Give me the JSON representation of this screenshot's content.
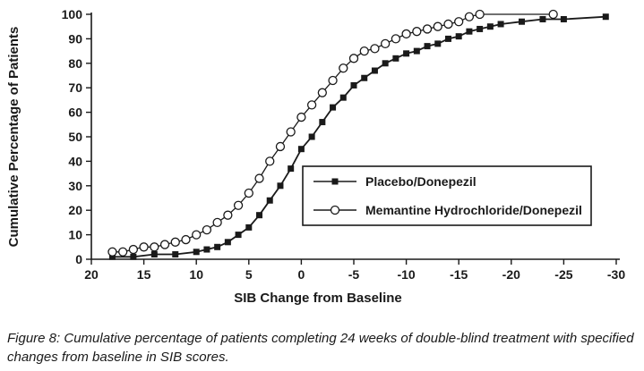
{
  "figure": {
    "caption": "Figure 8: Cumulative percentage of patients completing 24 weeks of double-blind treatment with specified changes from baseline in SIB scores."
  },
  "chart_data": {
    "type": "line",
    "title": "",
    "xlabel": "SIB Change from Baseline",
    "ylabel": "Cumulative Percentage of Patients",
    "x_axis_reversed": true,
    "xlim": [
      20,
      -30
    ],
    "ylim": [
      0,
      100
    ],
    "x_ticks": [
      20,
      15,
      10,
      5,
      0,
      -5,
      -10,
      -15,
      -20,
      -25,
      -30
    ],
    "y_ticks": [
      0,
      10,
      20,
      30,
      40,
      50,
      60,
      70,
      80,
      90,
      100
    ],
    "grid": false,
    "line_color": "#1a1a1a",
    "legend_position": "inside-right",
    "series": [
      {
        "name": "Placebo/Donepezil",
        "marker": "filled-square",
        "color": "#1a1a1a",
        "points": [
          [
            18,
            1
          ],
          [
            16,
            1
          ],
          [
            14,
            2
          ],
          [
            12,
            2
          ],
          [
            10,
            3
          ],
          [
            9,
            4
          ],
          [
            8,
            5
          ],
          [
            7,
            7
          ],
          [
            6,
            10
          ],
          [
            5,
            13
          ],
          [
            4,
            18
          ],
          [
            3,
            24
          ],
          [
            2,
            30
          ],
          [
            1,
            37
          ],
          [
            0,
            45
          ],
          [
            -1,
            50
          ],
          [
            -2,
            56
          ],
          [
            -3,
            62
          ],
          [
            -4,
            66
          ],
          [
            -5,
            71
          ],
          [
            -6,
            74
          ],
          [
            -7,
            77
          ],
          [
            -8,
            80
          ],
          [
            -9,
            82
          ],
          [
            -10,
            84
          ],
          [
            -11,
            85
          ],
          [
            -12,
            87
          ],
          [
            -13,
            88
          ],
          [
            -14,
            90
          ],
          [
            -15,
            91
          ],
          [
            -16,
            93
          ],
          [
            -17,
            94
          ],
          [
            -18,
            95
          ],
          [
            -19,
            96
          ],
          [
            -21,
            97
          ],
          [
            -23,
            98
          ],
          [
            -25,
            98
          ],
          [
            -29,
            99
          ]
        ]
      },
      {
        "name": "Memantine Hydrochloride/Donepezil",
        "marker": "open-circle",
        "color": "#1a1a1a",
        "points": [
          [
            18,
            3
          ],
          [
            17,
            3
          ],
          [
            16,
            4
          ],
          [
            15,
            5
          ],
          [
            14,
            5
          ],
          [
            13,
            6
          ],
          [
            12,
            7
          ],
          [
            11,
            8
          ],
          [
            10,
            10
          ],
          [
            9,
            12
          ],
          [
            8,
            15
          ],
          [
            7,
            18
          ],
          [
            6,
            22
          ],
          [
            5,
            27
          ],
          [
            4,
            33
          ],
          [
            3,
            40
          ],
          [
            2,
            46
          ],
          [
            1,
            52
          ],
          [
            0,
            58
          ],
          [
            -1,
            63
          ],
          [
            -2,
            68
          ],
          [
            -3,
            73
          ],
          [
            -4,
            78
          ],
          [
            -5,
            82
          ],
          [
            -6,
            85
          ],
          [
            -7,
            86
          ],
          [
            -8,
            88
          ],
          [
            -9,
            90
          ],
          [
            -10,
            92
          ],
          [
            -11,
            93
          ],
          [
            -12,
            94
          ],
          [
            -13,
            95
          ],
          [
            -14,
            96
          ],
          [
            -15,
            97
          ],
          [
            -16,
            99
          ],
          [
            -17,
            100
          ],
          [
            -24,
            100
          ]
        ]
      }
    ]
  }
}
